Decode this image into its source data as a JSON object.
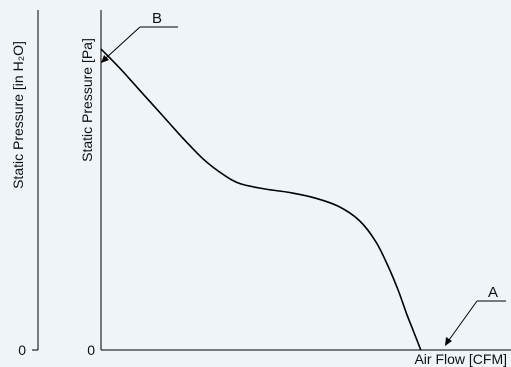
{
  "chart_data": {
    "type": "line",
    "title": "",
    "xlabel": "Air Flow [CFM]",
    "ylabel_left": "Static Pressure [in H₂O]",
    "ylabel_right": "Static Pressure [Pa]",
    "x_tick_labels": [
      "0"
    ],
    "y_tick_labels_left": [
      "0"
    ],
    "xlim": [
      0,
      100
    ],
    "ylim": [
      0,
      100
    ],
    "grid": false,
    "series": [
      {
        "points": [
          [
            0,
            86
          ],
          [
            5,
            80
          ],
          [
            10,
            73.5
          ],
          [
            15,
            67
          ],
          [
            20,
            60.5
          ],
          [
            25,
            54.5
          ],
          [
            30,
            50
          ],
          [
            34,
            47.5
          ],
          [
            40,
            46
          ],
          [
            46,
            45
          ],
          [
            52,
            43.5
          ],
          [
            58,
            41
          ],
          [
            63,
            37
          ],
          [
            67,
            31
          ],
          [
            70,
            24
          ],
          [
            72.5,
            17
          ],
          [
            74.5,
            10.5
          ],
          [
            76,
            6
          ],
          [
            77,
            3
          ],
          [
            78,
            0
          ]
        ]
      }
    ],
    "annotations": [
      {
        "label": "B",
        "x": 0,
        "y": 86
      },
      {
        "label": "A",
        "x": 78,
        "y": 0
      }
    ],
    "colors": {
      "curve": "#000000",
      "background": "#eef4f8"
    }
  }
}
